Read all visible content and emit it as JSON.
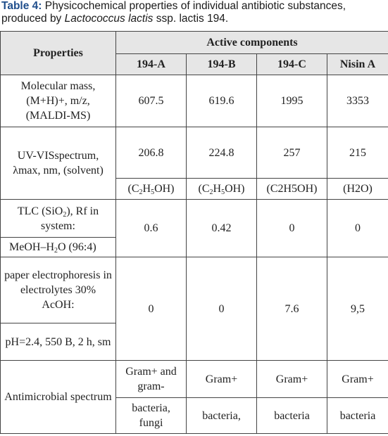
{
  "caption": {
    "label": "Table 4:",
    "text_1": " Physicochemical properties of individual antibiotic substances, produced by ",
    "organism": "Lactococcus lactis",
    "text_2": " ssp. lactis 194."
  },
  "header": {
    "properties": "Properties",
    "active_components": "Active components",
    "columns": [
      "194-A",
      "194-B",
      "194-C",
      "Nisin A"
    ]
  },
  "rows": {
    "mass": {
      "label": "Molecular mass, (M+H)+, m/z, (MALDI-MS)",
      "values": [
        "607.5",
        "619.6",
        "1995",
        "3353"
      ]
    },
    "uv": {
      "label": "UV-VISspectrum, λmax, nm, (solvent)",
      "values": [
        "206.8",
        "224.8",
        "257",
        "215"
      ],
      "solvents": {
        "c1_pre": "(C",
        "c1_s1": "2",
        "c1_mid": "H",
        "c1_s2": "5",
        "c1_post": "OH)",
        "c2_pre": "(C",
        "c2_s1": "2",
        "c2_mid": "H",
        "c2_s2": "5",
        "c2_post": "OH)",
        "c3": "(C2H5OH)",
        "c4": "(H2O)"
      }
    },
    "tlc": {
      "label_pre": "TLC (SiO",
      "label_sub": "2",
      "label_post": "), Rf in system:",
      "system_pre": "MeOH–H",
      "system_sub": "2",
      "system_post": "O (96:4)",
      "values": [
        "0.6",
        "0.42",
        "0",
        "0"
      ]
    },
    "electro": {
      "label": "paper electrophoresis in electrolytes 30% AcOH:",
      "label_2": "pH=2.4, 550 B, 2 h, sm",
      "values": [
        "0",
        "0",
        "7.6",
        "9,5"
      ]
    },
    "antimicrobial": {
      "label": "Antimicrobial spectrum",
      "top": [
        "Gram+ and gram-",
        "Gram+",
        "Gram+",
        "Gram+"
      ],
      "bottom": [
        "bacteria, fungi",
        "bacteria,",
        "bacteria",
        "bacteria"
      ]
    }
  }
}
